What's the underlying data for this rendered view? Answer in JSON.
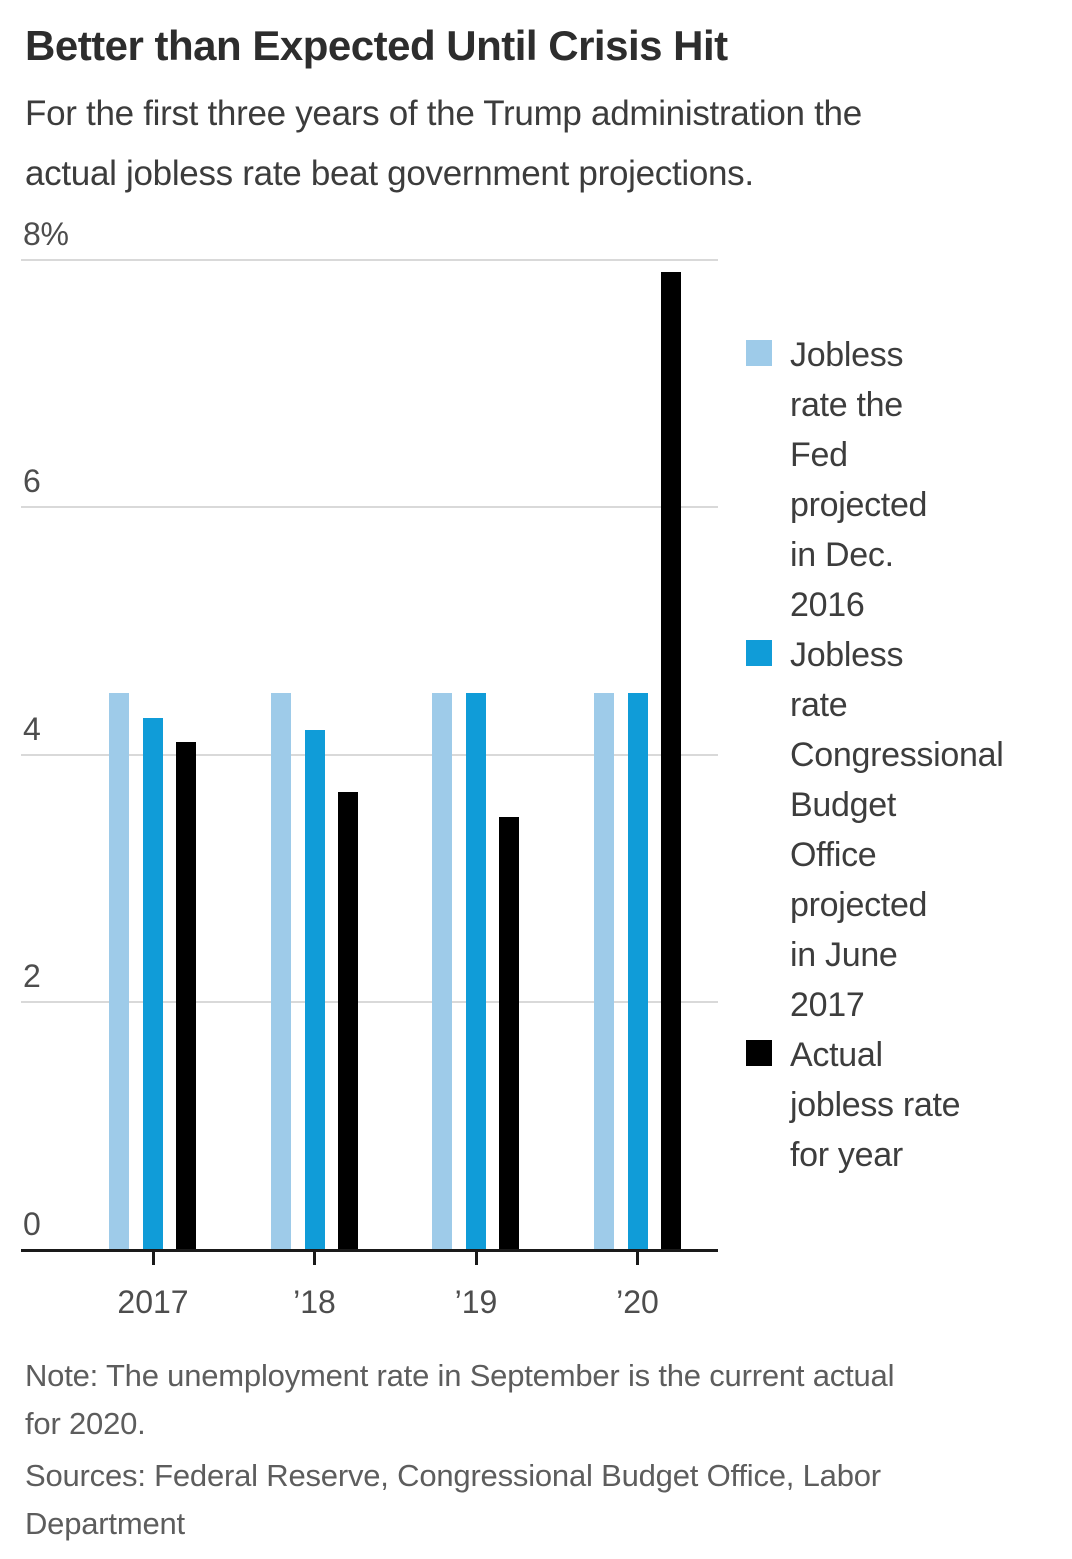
{
  "chart_data": {
    "type": "bar",
    "title": "Better than Expected Until Crisis Hit",
    "subtitle": "For the first three years of the Trump administration the\nactual jobless rate beat government projections.",
    "categories": [
      "2017",
      "’18",
      "’19",
      "’20"
    ],
    "series": [
      {
        "name": "Jobless rate the Fed projected in Dec. 2016",
        "legend_label": "Jobless\nrate the\nFed\nprojected\nin Dec.\n2016",
        "color": "#9ecbe9",
        "values": [
          4.5,
          4.5,
          4.5,
          4.5
        ]
      },
      {
        "name": "Jobless rate Congressional Budget Office projected in June 2017",
        "legend_label": "Jobless\nrate\nCongressional\nBudget\nOffice\nprojected\nin June\n2017",
        "color": "#109cd8",
        "values": [
          4.3,
          4.2,
          4.5,
          4.5
        ]
      },
      {
        "name": "Actual jobless rate for year",
        "legend_label": "Actual\njobless rate\nfor year",
        "color": "#000000",
        "values": [
          4.1,
          3.7,
          3.5,
          7.9
        ]
      }
    ],
    "y_ticks": [
      {
        "value": 0,
        "label": "0"
      },
      {
        "value": 2,
        "label": "2"
      },
      {
        "value": 4,
        "label": "4"
      },
      {
        "value": 6,
        "label": "6"
      },
      {
        "value": 8,
        "label": "8%"
      }
    ],
    "ylim": [
      0,
      8.4
    ],
    "xlabel": "",
    "ylabel": "",
    "grid": true,
    "legend_position": "right",
    "note": "Note: The unemployment rate in September is the current actual\nfor 2020.",
    "sources": "Sources: Federal Reserve, Congressional Budget Office, Labor\nDepartment"
  }
}
